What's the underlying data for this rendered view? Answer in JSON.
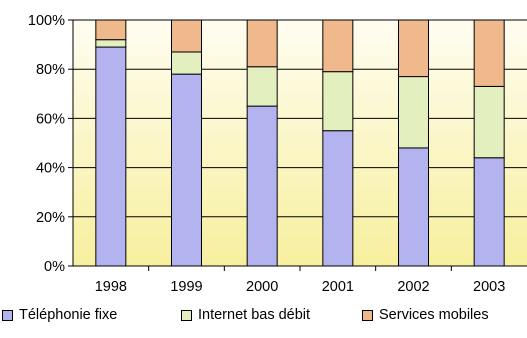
{
  "chart_data": {
    "type": "bar",
    "stacked": true,
    "percent_stacked": true,
    "categories": [
      "1998",
      "1999",
      "2000",
      "2001",
      "2002",
      "2003"
    ],
    "series": [
      {
        "name": "Téléphonie fixe",
        "color": "#b3b3f0",
        "values": [
          89,
          78,
          65,
          55,
          48,
          44
        ]
      },
      {
        "name": "Internet bas débit",
        "color": "#e4efc0",
        "values": [
          3,
          9,
          16,
          24,
          29,
          29
        ]
      },
      {
        "name": "Services mobiles",
        "color": "#efb98c",
        "values": [
          8,
          13,
          19,
          21,
          23,
          27
        ]
      }
    ],
    "yticks": [
      "0%",
      "20%",
      "40%",
      "60%",
      "80%",
      "100%"
    ],
    "ylim": [
      0,
      100
    ],
    "grid": true,
    "legend_position": "bottom",
    "plot_background": "gradient-yellow",
    "title": "",
    "xlabel": "",
    "ylabel": ""
  }
}
